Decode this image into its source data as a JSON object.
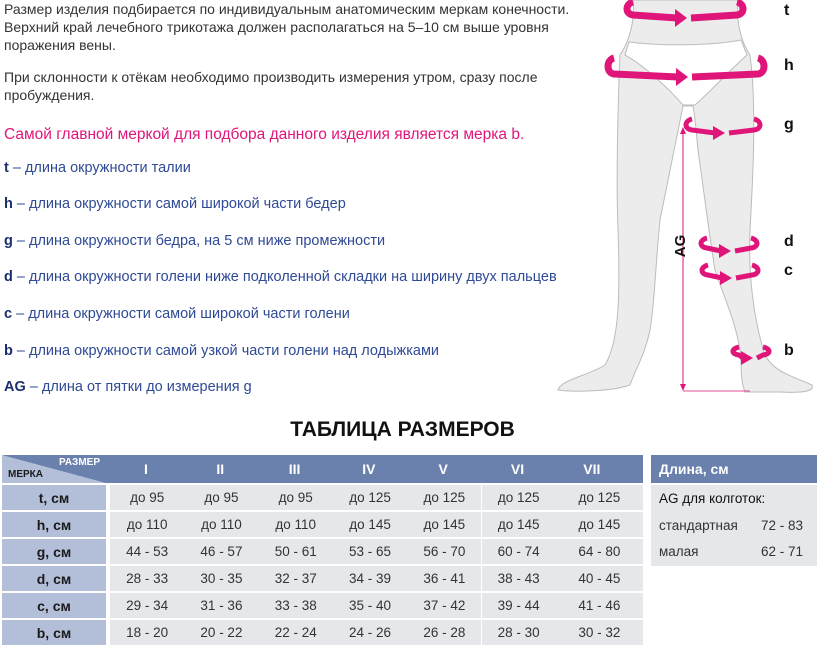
{
  "intro": {
    "p1": "Размер изделия подбирается по индивидуальным анатомическим меркам конечности. Верхний край лечебного трикотажа должен располагаться на 5–10 см выше уровня поражения вены.",
    "p2": "При склонности к отёкам необходимо производить измерения утром, сразу после пробуждения.",
    "accent": "Самой главной меркой для подбора данного изделия является мерка b."
  },
  "legend": [
    {
      "key": "t",
      "text": " – длина окружности талии"
    },
    {
      "key": "h",
      "text": " – длина окружности самой широкой части бедер"
    },
    {
      "key": "g",
      "text": " – длина окружности бедра, на 5 см ниже промежности"
    },
    {
      "key": "d",
      "text": " – длина окружности голени ниже подколенной складки на ширину двух пальцев"
    },
    {
      "key": "c",
      "text": " – длина окружности самой широкой части голени"
    },
    {
      "key": "b",
      "text": " – длина окружности самой узкой части голени над лодыжками"
    },
    {
      "key": "AG",
      "text": " – длина от пятки до измерения g"
    }
  ],
  "figure": {
    "labels": [
      "t",
      "h",
      "g",
      "d",
      "c",
      "b"
    ],
    "ag_label": "AG",
    "accent_color": "#e0157a"
  },
  "table": {
    "title": "ТАБЛИЦА РАЗМЕРОВ",
    "corner_top": "РАЗМЕР",
    "corner_bottom": "МЕРКА",
    "sizes": [
      "I",
      "II",
      "III",
      "IV",
      "V",
      "VI",
      "VII"
    ],
    "rows": [
      {
        "label": "t, см",
        "values": [
          "до 95",
          "до 95",
          "до 95",
          "до 125",
          "до 125",
          "до 125",
          "до 125"
        ]
      },
      {
        "label": "h, см",
        "values": [
          "до 110",
          "до 110",
          "до 110",
          "до 145",
          "до 145",
          "до 145",
          "до 145"
        ]
      },
      {
        "label": "g, см",
        "values": [
          "44 - 53",
          "46 - 57",
          "50 - 61",
          "53 - 65",
          "56 - 70",
          "60 - 74",
          "64 - 80"
        ]
      },
      {
        "label": "d, см",
        "values": [
          "28 - 33",
          "30 - 35",
          "32 - 37",
          "34 - 39",
          "36 - 41",
          "38 - 43",
          "40 - 45"
        ]
      },
      {
        "label": "c, см",
        "values": [
          "29 - 34",
          "31 - 36",
          "33 - 38",
          "35 - 40",
          "37 - 42",
          "39 - 44",
          "41 - 46"
        ]
      },
      {
        "label": "b, см",
        "values": [
          "18 - 20",
          "20 - 22",
          "22 - 24",
          "24 - 26",
          "26 - 28",
          "28 - 30",
          "30 - 32"
        ]
      }
    ],
    "colors": {
      "header": "#6a80ad",
      "label": "#b3bfd9",
      "cell": "#e5e7eb"
    }
  },
  "length_table": {
    "header": "Длина, см",
    "subtitle": "AG для колготок:",
    "rows": [
      {
        "label": "стандартная",
        "value": "72 - 83"
      },
      {
        "label": "малая",
        "value": "62 - 71"
      }
    ]
  }
}
